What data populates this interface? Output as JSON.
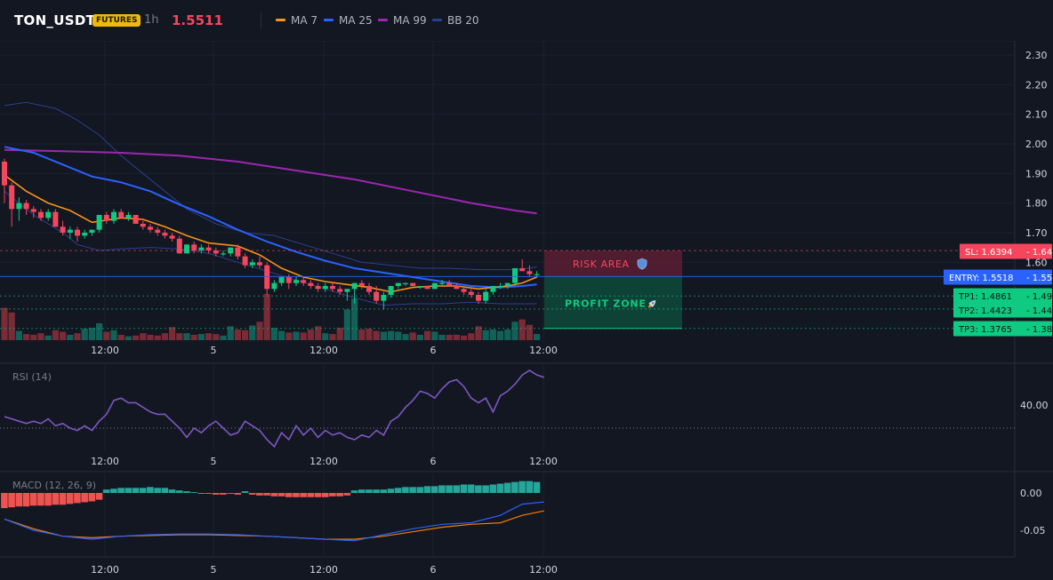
{
  "header": {
    "symbol": "TON_USDT",
    "badge": "FUTURES",
    "interval": "1h",
    "price": "1.5511",
    "legend": [
      {
        "label": "MA 7",
        "color": "#f7931a"
      },
      {
        "label": "MA 25",
        "color": "#2962ff"
      },
      {
        "label": "MA 99",
        "color": "#9c27b0"
      },
      {
        "label": "BB 20",
        "color": "#2a3f8f"
      }
    ]
  },
  "colors": {
    "background": "#131722",
    "up": "#0ecb81",
    "down": "#f6465d",
    "vol_up": "#136f63",
    "vol_down": "#8c2f39",
    "ma7": "#f7931a",
    "ma25": "#2962ff",
    "ma99": "#9c27b0",
    "bb": "#2a3f8f",
    "rsi": "#7e57c2",
    "macd_line": "#2962ff",
    "signal_line": "#f57c00",
    "hist_pos": "#26a69a",
    "hist_neg": "#ef5350"
  },
  "levels": {
    "sl": {
      "label": "SL: 1.6394",
      "value": 1.6394,
      "axis_label": "1.64",
      "color": "#f6465d"
    },
    "entry": {
      "label": "ENTRY: 1.5518",
      "value": 1.5518,
      "axis_label": "1.55",
      "color": "#2962ff"
    },
    "tp1": {
      "label": "TP1: 1.4861",
      "value": 1.4861,
      "axis_label": "1.49",
      "color": "#0ecb81"
    },
    "tp2": {
      "label": "TP2: 1.4423",
      "value": 1.4423,
      "axis_label": "1.44",
      "color": "#0ecb81"
    },
    "tp3": {
      "label": "TP3: 1.3765",
      "value": 1.3765,
      "axis_label": "1.38",
      "color": "#0ecb81"
    }
  },
  "zones": {
    "risk": {
      "label": "RISK AREA",
      "icon": "shield-icon",
      "top": 1.6394,
      "bottom": 1.5518
    },
    "profit": {
      "label": "PROFIT ZONE",
      "icon": "rocket-icon",
      "top": 1.5518,
      "bottom": 1.3765
    }
  },
  "indicators": {
    "rsi": {
      "title": "RSI (14)",
      "axis_labels": [
        "40.00"
      ],
      "ref_level": 30
    },
    "macd": {
      "title": "MACD (12, 26, 9)",
      "axis_labels": [
        "0.00",
        "-0.05"
      ]
    }
  },
  "chart_data": {
    "type": "candlestick",
    "price_axis": {
      "ylim": [
        1.3,
        2.33
      ],
      "ticks": [
        "2.30",
        "2.20",
        "2.10",
        "2.00",
        "1.90",
        "1.80",
        "1.70",
        "1.60"
      ]
    },
    "time_axis": {
      "ticks": [
        "12:00",
        "5",
        "12:00",
        "6",
        "12:00"
      ]
    },
    "candles": [
      [
        1.94,
        1.95,
        1.8,
        1.86,
        4200
      ],
      [
        1.86,
        1.87,
        1.72,
        1.78,
        3600
      ],
      [
        1.78,
        1.82,
        1.74,
        1.8,
        1200
      ],
      [
        1.8,
        1.81,
        1.76,
        1.78,
        800
      ],
      [
        1.78,
        1.79,
        1.75,
        1.77,
        700
      ],
      [
        1.77,
        1.78,
        1.74,
        1.75,
        900
      ],
      [
        1.75,
        1.78,
        1.74,
        1.77,
        600
      ],
      [
        1.77,
        1.78,
        1.72,
        1.72,
        1300
      ],
      [
        1.72,
        1.74,
        1.69,
        1.7,
        1100
      ],
      [
        1.7,
        1.72,
        1.68,
        1.71,
        700
      ],
      [
        1.71,
        1.72,
        1.67,
        1.69,
        900
      ],
      [
        1.69,
        1.71,
        1.68,
        1.7,
        1500
      ],
      [
        1.7,
        1.71,
        1.69,
        1.71,
        1600
      ],
      [
        1.71,
        1.76,
        1.7,
        1.76,
        2200
      ],
      [
        1.76,
        1.77,
        1.73,
        1.74,
        1100
      ],
      [
        1.74,
        1.78,
        1.73,
        1.77,
        1300
      ],
      [
        1.77,
        1.78,
        1.75,
        1.75,
        700
      ],
      [
        1.75,
        1.77,
        1.74,
        1.76,
        500
      ],
      [
        1.76,
        1.76,
        1.73,
        1.73,
        600
      ],
      [
        1.73,
        1.74,
        1.71,
        1.72,
        900
      ],
      [
        1.72,
        1.73,
        1.7,
        1.71,
        700
      ],
      [
        1.71,
        1.72,
        1.69,
        1.7,
        600
      ],
      [
        1.7,
        1.71,
        1.68,
        1.69,
        900
      ],
      [
        1.69,
        1.7,
        1.67,
        1.68,
        1700
      ],
      [
        1.68,
        1.69,
        1.63,
        1.63,
        900
      ],
      [
        1.63,
        1.66,
        1.63,
        1.66,
        900
      ],
      [
        1.66,
        1.67,
        1.63,
        1.64,
        700
      ],
      [
        1.64,
        1.66,
        1.63,
        1.65,
        800
      ],
      [
        1.65,
        1.66,
        1.63,
        1.64,
        900
      ],
      [
        1.64,
        1.65,
        1.62,
        1.63,
        800
      ],
      [
        1.63,
        1.64,
        1.62,
        1.63,
        600
      ],
      [
        1.63,
        1.65,
        1.62,
        1.65,
        1800
      ],
      [
        1.65,
        1.66,
        1.61,
        1.62,
        1400
      ],
      [
        1.62,
        1.63,
        1.58,
        1.59,
        1300
      ],
      [
        1.59,
        1.61,
        1.58,
        1.6,
        1900
      ],
      [
        1.6,
        1.62,
        1.58,
        1.59,
        2400
      ],
      [
        1.59,
        1.6,
        1.49,
        1.51,
        6000
      ],
      [
        1.51,
        1.54,
        1.5,
        1.53,
        1600
      ],
      [
        1.53,
        1.55,
        1.52,
        1.55,
        1200
      ],
      [
        1.55,
        1.56,
        1.51,
        1.53,
        1000
      ],
      [
        1.53,
        1.55,
        1.52,
        1.54,
        1100
      ],
      [
        1.54,
        1.55,
        1.52,
        1.53,
        1000
      ],
      [
        1.53,
        1.54,
        1.51,
        1.52,
        1400
      ],
      [
        1.52,
        1.53,
        1.5,
        1.51,
        1800
      ],
      [
        1.51,
        1.53,
        1.5,
        1.52,
        900
      ],
      [
        1.52,
        1.53,
        1.5,
        1.51,
        800
      ],
      [
        1.51,
        1.52,
        1.49,
        1.5,
        1600
      ],
      [
        1.5,
        1.51,
        1.47,
        1.51,
        4000
      ],
      [
        1.51,
        1.53,
        1.46,
        1.53,
        5400
      ],
      [
        1.53,
        1.54,
        1.51,
        1.52,
        1400
      ],
      [
        1.52,
        1.53,
        1.49,
        1.5,
        1500
      ],
      [
        1.5,
        1.52,
        1.46,
        1.47,
        1200
      ],
      [
        1.47,
        1.5,
        1.44,
        1.49,
        1100
      ],
      [
        1.49,
        1.52,
        1.48,
        1.52,
        1200
      ],
      [
        1.52,
        1.53,
        1.51,
        1.53,
        1100
      ],
      [
        1.53,
        1.53,
        1.52,
        1.53,
        800
      ],
      [
        1.53,
        1.53,
        1.52,
        1.52,
        1000
      ],
      [
        1.52,
        1.52,
        1.51,
        1.52,
        700
      ],
      [
        1.52,
        1.52,
        1.51,
        1.51,
        1200
      ],
      [
        1.51,
        1.53,
        1.51,
        1.53,
        1100
      ],
      [
        1.53,
        1.54,
        1.52,
        1.53,
        700
      ],
      [
        1.53,
        1.54,
        1.52,
        1.52,
        700
      ],
      [
        1.52,
        1.53,
        1.51,
        1.51,
        700
      ],
      [
        1.51,
        1.52,
        1.49,
        1.5,
        600
      ],
      [
        1.5,
        1.51,
        1.48,
        1.49,
        900
      ],
      [
        1.49,
        1.5,
        1.46,
        1.47,
        1800
      ],
      [
        1.47,
        1.51,
        1.46,
        1.5,
        1300
      ],
      [
        1.5,
        1.52,
        1.49,
        1.52,
        1400
      ],
      [
        1.52,
        1.53,
        1.51,
        1.52,
        1200
      ],
      [
        1.52,
        1.53,
        1.51,
        1.53,
        1400
      ],
      [
        1.53,
        1.58,
        1.52,
        1.58,
        2400
      ],
      [
        1.58,
        1.61,
        1.57,
        1.57,
        2700
      ],
      [
        1.57,
        1.59,
        1.55,
        1.56,
        2000
      ],
      [
        1.56,
        1.57,
        1.55,
        1.56,
        800
      ]
    ],
    "ma7": [
      [
        0,
        1.895
      ],
      [
        3,
        1.84
      ],
      [
        6,
        1.8
      ],
      [
        9,
        1.775
      ],
      [
        12,
        1.735
      ],
      [
        16,
        1.75
      ],
      [
        19,
        1.745
      ],
      [
        22,
        1.72
      ],
      [
        25,
        1.69
      ],
      [
        28,
        1.665
      ],
      [
        32,
        1.655
      ],
      [
        35,
        1.625
      ],
      [
        38,
        1.58
      ],
      [
        41,
        1.55
      ],
      [
        44,
        1.535
      ],
      [
        47,
        1.525
      ],
      [
        50,
        1.515
      ],
      [
        53,
        1.5
      ],
      [
        56,
        1.515
      ],
      [
        59,
        1.52
      ],
      [
        62,
        1.52
      ],
      [
        65,
        1.51
      ],
      [
        67,
        1.515
      ],
      [
        69,
        1.52
      ],
      [
        71,
        1.53
      ],
      [
        73,
        1.55
      ]
    ],
    "ma25": [
      [
        0,
        1.99
      ],
      [
        4,
        1.97
      ],
      [
        8,
        1.93
      ],
      [
        12,
        1.89
      ],
      [
        16,
        1.87
      ],
      [
        20,
        1.84
      ],
      [
        24,
        1.795
      ],
      [
        28,
        1.755
      ],
      [
        32,
        1.71
      ],
      [
        36,
        1.67
      ],
      [
        40,
        1.635
      ],
      [
        44,
        1.605
      ],
      [
        48,
        1.58
      ],
      [
        52,
        1.565
      ],
      [
        56,
        1.55
      ],
      [
        60,
        1.535
      ],
      [
        64,
        1.52
      ],
      [
        68,
        1.515
      ],
      [
        71,
        1.52
      ],
      [
        73,
        1.525
      ]
    ],
    "ma99": [
      [
        0,
        1.98
      ],
      [
        8,
        1.975
      ],
      [
        16,
        1.97
      ],
      [
        24,
        1.96
      ],
      [
        32,
        1.94
      ],
      [
        40,
        1.91
      ],
      [
        48,
        1.88
      ],
      [
        56,
        1.84
      ],
      [
        64,
        1.8
      ],
      [
        70,
        1.775
      ],
      [
        73,
        1.765
      ]
    ],
    "bb_upper": [
      [
        0,
        2.13
      ],
      [
        3,
        2.14
      ],
      [
        7,
        2.12
      ],
      [
        10,
        2.08
      ],
      [
        13,
        2.03
      ],
      [
        16,
        1.96
      ],
      [
        19,
        1.9
      ],
      [
        22,
        1.84
      ],
      [
        25,
        1.78
      ],
      [
        29,
        1.73
      ],
      [
        33,
        1.7
      ],
      [
        37,
        1.69
      ],
      [
        41,
        1.66
      ],
      [
        45,
        1.63
      ],
      [
        49,
        1.6
      ],
      [
        53,
        1.59
      ],
      [
        57,
        1.58
      ],
      [
        61,
        1.58
      ],
      [
        65,
        1.575
      ],
      [
        69,
        1.575
      ],
      [
        72,
        1.58
      ],
      [
        73,
        1.585
      ]
    ],
    "bb_lower": [
      [
        0,
        1.84
      ],
      [
        4,
        1.76
      ],
      [
        8,
        1.7
      ],
      [
        10,
        1.66
      ],
      [
        13,
        1.64
      ],
      [
        16,
        1.645
      ],
      [
        20,
        1.65
      ],
      [
        24,
        1.645
      ],
      [
        28,
        1.63
      ],
      [
        32,
        1.6
      ],
      [
        36,
        1.57
      ],
      [
        40,
        1.54
      ],
      [
        44,
        1.51
      ],
      [
        48,
        1.48
      ],
      [
        52,
        1.455
      ],
      [
        56,
        1.46
      ],
      [
        60,
        1.46
      ],
      [
        64,
        1.465
      ],
      [
        68,
        1.46
      ],
      [
        71,
        1.46
      ],
      [
        73,
        1.46
      ]
    ],
    "rsi": [
      [
        0,
        35
      ],
      [
        2,
        33
      ],
      [
        3,
        32
      ],
      [
        4,
        33
      ],
      [
        5,
        32
      ],
      [
        6,
        34
      ],
      [
        7,
        31
      ],
      [
        8,
        32
      ],
      [
        9,
        30
      ],
      [
        10,
        29
      ],
      [
        11,
        31
      ],
      [
        12,
        29
      ],
      [
        13,
        33
      ],
      [
        14,
        36
      ],
      [
        15,
        42
      ],
      [
        16,
        43
      ],
      [
        17,
        41
      ],
      [
        18,
        41
      ],
      [
        19,
        39
      ],
      [
        20,
        37
      ],
      [
        21,
        36
      ],
      [
        22,
        36
      ],
      [
        23,
        33
      ],
      [
        24,
        30
      ],
      [
        25,
        26
      ],
      [
        26,
        30
      ],
      [
        27,
        28
      ],
      [
        28,
        31
      ],
      [
        29,
        33
      ],
      [
        30,
        30
      ],
      [
        31,
        27
      ],
      [
        32,
        28
      ],
      [
        33,
        33
      ],
      [
        34,
        31
      ],
      [
        35,
        29
      ],
      [
        36,
        25
      ],
      [
        37,
        22
      ],
      [
        38,
        28
      ],
      [
        39,
        25
      ],
      [
        40,
        31
      ],
      [
        41,
        27
      ],
      [
        42,
        30
      ],
      [
        43,
        26
      ],
      [
        44,
        29
      ],
      [
        45,
        27
      ],
      [
        46,
        28
      ],
      [
        47,
        26
      ],
      [
        48,
        25
      ],
      [
        49,
        27
      ],
      [
        50,
        26
      ],
      [
        51,
        29
      ],
      [
        52,
        27
      ],
      [
        53,
        33
      ],
      [
        54,
        35
      ],
      [
        55,
        39
      ],
      [
        56,
        42
      ],
      [
        57,
        46
      ],
      [
        58,
        45
      ],
      [
        59,
        43
      ],
      [
        60,
        47
      ],
      [
        61,
        50
      ],
      [
        62,
        51
      ],
      [
        63,
        48
      ],
      [
        64,
        43
      ],
      [
        65,
        41
      ],
      [
        66,
        43
      ],
      [
        67,
        37
      ],
      [
        68,
        44
      ],
      [
        69,
        46
      ],
      [
        70,
        49
      ],
      [
        71,
        53
      ],
      [
        72,
        55
      ],
      [
        73,
        53
      ],
      [
        74,
        52
      ]
    ],
    "macd": [
      [
        0,
        -0.035
      ],
      [
        4,
        -0.05
      ],
      [
        8,
        -0.058
      ],
      [
        12,
        -0.062
      ],
      [
        16,
        -0.058
      ],
      [
        20,
        -0.056
      ],
      [
        24,
        -0.055
      ],
      [
        28,
        -0.055
      ],
      [
        32,
        -0.056
      ],
      [
        36,
        -0.058
      ],
      [
        40,
        -0.06
      ],
      [
        44,
        -0.062
      ],
      [
        48,
        -0.064
      ],
      [
        52,
        -0.056
      ],
      [
        56,
        -0.048
      ],
      [
        60,
        -0.042
      ],
      [
        64,
        -0.04
      ],
      [
        68,
        -0.03
      ],
      [
        71,
        -0.015
      ],
      [
        74,
        -0.012
      ]
    ],
    "signal": [
      [
        0,
        -0.035
      ],
      [
        4,
        -0.048
      ],
      [
        8,
        -0.058
      ],
      [
        12,
        -0.06
      ],
      [
        16,
        -0.058
      ],
      [
        20,
        -0.057
      ],
      [
        24,
        -0.056
      ],
      [
        28,
        -0.056
      ],
      [
        32,
        -0.057
      ],
      [
        36,
        -0.058
      ],
      [
        40,
        -0.06
      ],
      [
        44,
        -0.062
      ],
      [
        48,
        -0.062
      ],
      [
        52,
        -0.058
      ],
      [
        56,
        -0.052
      ],
      [
        60,
        -0.046
      ],
      [
        64,
        -0.042
      ],
      [
        68,
        -0.04
      ],
      [
        71,
        -0.03
      ],
      [
        74,
        -0.024
      ]
    ],
    "hist": [
      -18,
      -17,
      -16,
      -16,
      -15,
      -15,
      -15,
      -14,
      -14,
      -13,
      -12,
      -11,
      -10,
      -8,
      4,
      5,
      6,
      6,
      6,
      6,
      7,
      6,
      6,
      4,
      3,
      2,
      1,
      -1,
      -1,
      -2,
      -2,
      -1,
      -2,
      2,
      -2,
      -3,
      -3,
      -4,
      -4,
      -5,
      -5,
      -5,
      -5,
      -5,
      -5,
      -4,
      -4,
      -3,
      3,
      4,
      4,
      4,
      4,
      5,
      6,
      7,
      7,
      7,
      8,
      8,
      9,
      9,
      9,
      10,
      10,
      9,
      9,
      10,
      11,
      12,
      13,
      14,
      14,
      13
    ]
  }
}
